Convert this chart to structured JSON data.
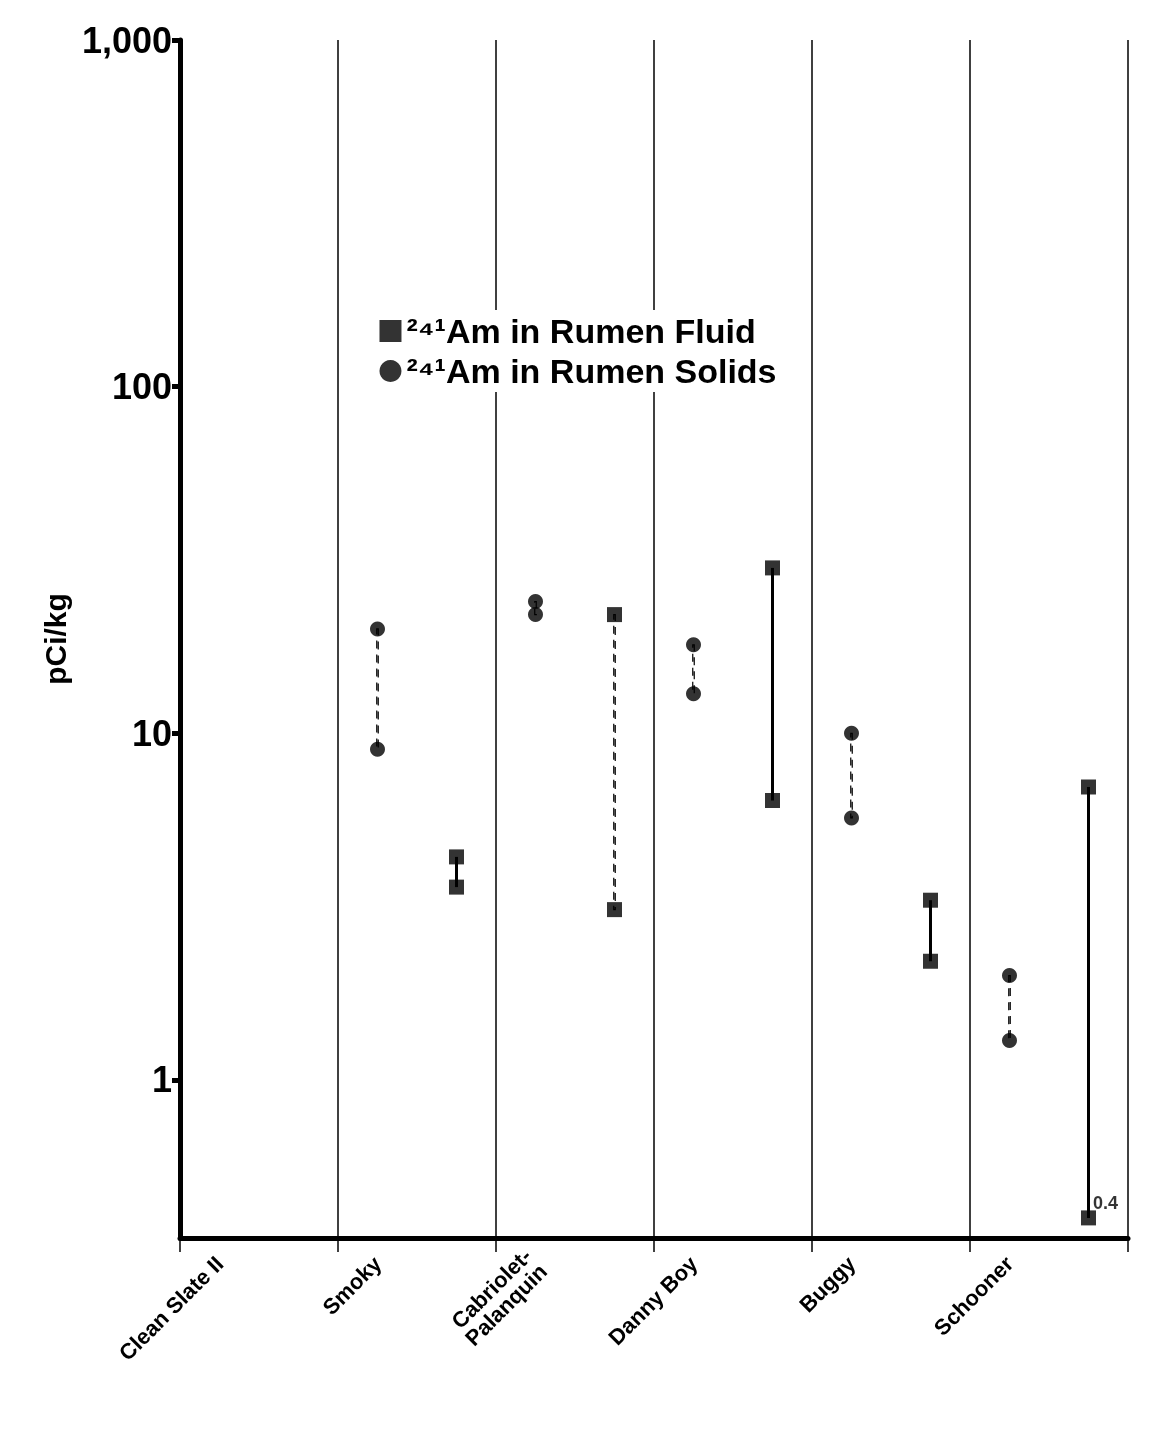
{
  "chart_data": {
    "type": "scatter",
    "ylabel": "pCi/kg",
    "categories": [
      "Clean Slate II",
      null,
      "Smoky",
      null,
      "Cabriolet-\nPalanquin",
      null,
      "Danny Boy",
      null,
      "Buggy",
      null,
      "Schooner",
      null
    ],
    "log": true,
    "ylim": [
      0.35,
      1000
    ],
    "yticks": [
      1,
      10,
      100,
      {
        "value": 1000,
        "label": "1,000"
      }
    ],
    "grid": "x",
    "legend": "top",
    "series": [
      {
        "type": "bar",
        "color": "#000000",
        "line_style": "solid",
        "base": [
          null,
          null,
          null,
          3.6,
          null,
          null,
          null,
          6.4,
          null,
          2.2,
          null,
          0.4
        ],
        "values": [
          null,
          null,
          null,
          0.8,
          null,
          null,
          null,
          23.6,
          null,
          1.1,
          null,
          6.6
        ]
      },
      {
        "type": "bar",
        "color": "#000000",
        "line_style": "dashed",
        "base": [
          null,
          null,
          9,
          null,
          22,
          3.1,
          13,
          null,
          5.7,
          null,
          1.3,
          null
        ],
        "values": [
          null,
          null,
          11,
          null,
          2,
          18.9,
          5,
          null,
          4.3,
          null,
          0.7,
          null
        ]
      },
      {
        "name": "²⁴¹Am in Rumen Fluid",
        "color": "#000000",
        "marker": "square",
        "values": [
          null,
          null,
          null,
          4.4,
          null,
          22,
          null,
          30,
          null,
          3.3,
          null,
          7
        ]
      },
      {
        "name": "²⁴¹Am in Rumen Solids",
        "color": "#000000",
        "marker": "circle",
        "values": [
          null,
          null,
          20,
          null,
          24,
          null,
          18,
          null,
          10,
          null,
          2.0,
          null
        ]
      },
      {
        "color": "#000000",
        "marker": "square",
        "values": [
          null,
          null,
          null,
          3.6,
          null,
          3.1,
          null,
          6.4,
          null,
          2.2,
          null,
          0.4
        ],
        "value_labels": [
          null,
          null,
          null,
          null,
          null,
          null,
          null,
          null,
          null,
          null,
          null,
          "0.4"
        ]
      },
      {
        "color": "#000000",
        "marker": "circle",
        "values": [
          null,
          null,
          9,
          null,
          22,
          null,
          13,
          null,
          5.7,
          null,
          1.3,
          null
        ]
      }
    ]
  }
}
